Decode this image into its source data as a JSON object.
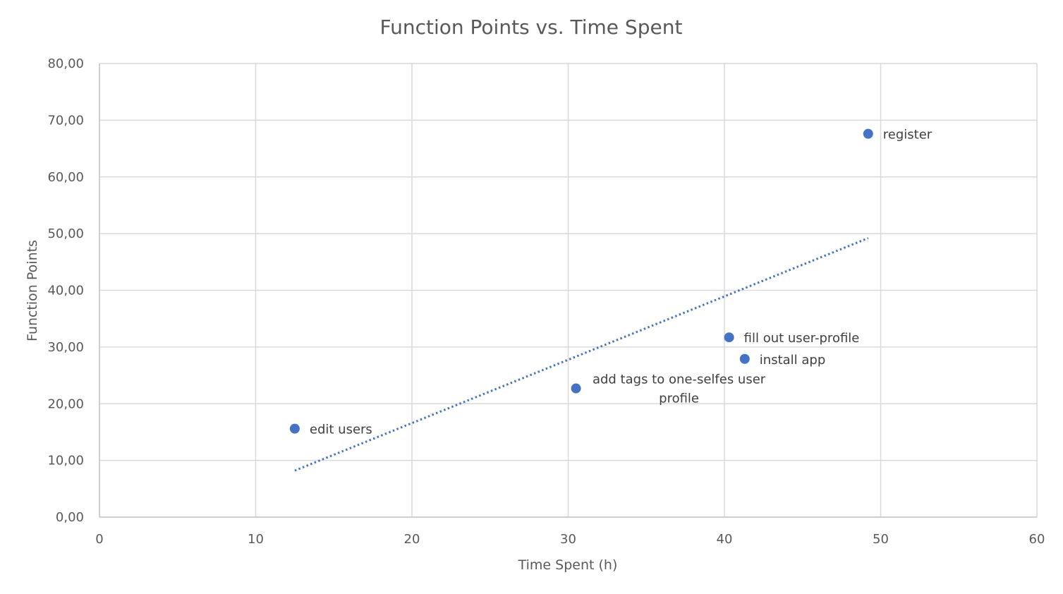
{
  "chart_data": {
    "type": "scatter",
    "title": "Function Points vs. Time Spent",
    "xlabel": "Time Spent (h)",
    "ylabel": "Function Points",
    "xlim": [
      0,
      60
    ],
    "ylim": [
      0,
      80
    ],
    "x_ticks": [
      "0",
      "10",
      "20",
      "30",
      "40",
      "50",
      "60"
    ],
    "y_ticks": [
      "0,00",
      "10,00",
      "20,00",
      "30,00",
      "40,00",
      "50,00",
      "60,00",
      "70,00",
      "80,00"
    ],
    "grid": true,
    "legend": "none",
    "series": [
      {
        "color": "#4472c4",
        "points": [
          {
            "x": 12.5,
            "y": 15.6,
            "label": "edit users"
          },
          {
            "x": 30.5,
            "y": 22.7,
            "label": "add tags to one-selfes user profile"
          },
          {
            "x": 40.3,
            "y": 31.7,
            "label": "fill out user-profile"
          },
          {
            "x": 41.3,
            "y": 27.9,
            "label": "install app"
          },
          {
            "x": 49.2,
            "y": 67.6,
            "label": "register"
          }
        ]
      }
    ],
    "trendline": {
      "type": "linear",
      "style": "dotted",
      "color": "#4472c4",
      "x_range": [
        12.5,
        49.2
      ],
      "y_values": [
        8.2,
        49.2
      ]
    }
  }
}
